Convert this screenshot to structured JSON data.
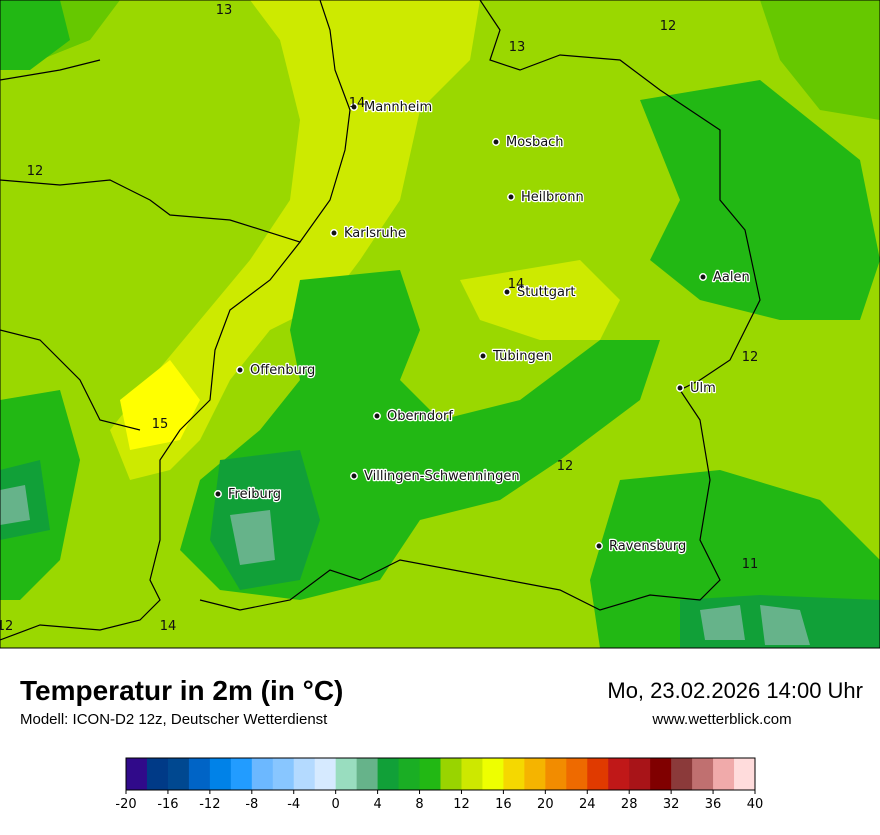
{
  "map": {
    "cities": [
      "Mannheim",
      "Mosbach",
      "Heilbronn",
      "Karlsruhe",
      "Stuttgart",
      "Aalen",
      "Tübingen",
      "Ulm",
      "Offenburg",
      "Oberndorf",
      "Villingen-Schwenningen",
      "Freiburg",
      "Ravensburg"
    ],
    "contour_labels": [
      13,
      13,
      12,
      14,
      12,
      14,
      12,
      15,
      12,
      11,
      12,
      14
    ]
  },
  "header": {
    "title": "Temperatur in 2m (in °C)",
    "subtitle": "Modell: ICON-D2 12z, Deutscher Wetterdienst",
    "date": "Mo, 23.02.2026 14:00 Uhr",
    "website": "www.wetterblick.com"
  },
  "colorbar": {
    "range": [
      -20,
      40
    ],
    "colors": [
      "#300a8a",
      "#003a87",
      "#004890",
      "#0064c6",
      "#0082e8",
      "#229cff",
      "#6cb8ff",
      "#88c6ff",
      "#b4daff",
      "#d6eaff",
      "#99ddbf",
      "#66b38a",
      "#11a038",
      "#1aae24",
      "#22b814",
      "#99d400",
      "#cde800",
      "#eeff00",
      "#f5d800",
      "#f5b400",
      "#f28c00",
      "#ee6a00",
      "#e03a00",
      "#c01818",
      "#a81418",
      "#800000",
      "#8b3a3a",
      "#c07070",
      "#f0aaaa",
      "#ffdcdc"
    ],
    "ticks": [
      -20,
      -16,
      -12,
      -8,
      -4,
      0,
      4,
      8,
      12,
      16,
      20,
      24,
      28,
      32,
      36,
      40
    ]
  }
}
